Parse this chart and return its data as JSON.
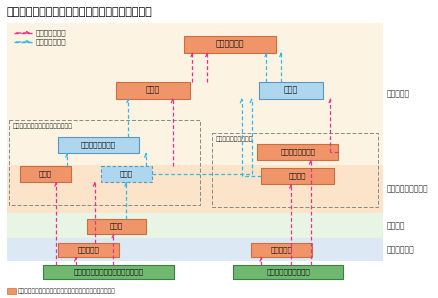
{
  "title": "ボスニア・ヘルツェゴビナの統治機構と選挙対象",
  "legend_election": "選挙により選出",
  "legend_appoint": "指名により選出",
  "note": "　部分は今次選挙の対象となった各議会であることを示す。",
  "bg": "#ffffff",
  "band_central": "#fdf3e3",
  "band_entity": "#fce4ca",
  "band_county": "#e8f4e4",
  "band_municipal": "#dce8f4",
  "orange_f": "#f0956a",
  "orange_e": "#c87040",
  "blue_f": "#aed6ee",
  "blue_e": "#5898c0",
  "green_f": "#70b870",
  "green_e": "#3a8040",
  "pink": "#e8308c",
  "cyan": "#30b8e8",
  "gray": "#888888",
  "lbl_central": "中央レベル",
  "lbl_entity": "エンティティレベル",
  "lbl_county": "県レベル",
  "lbl_municipal": "市町村レベル",
  "presidential_council": "大統領評議会",
  "house_reps_c": "代議院",
  "house_peoples_c": "民族院",
  "fed_label": "「ボスニア・ヘルツェゴビナ連邦」",
  "fed_label2": "[ボスニア・ヘルツェゴビナ連邦]",
  "fed_president": "大統領・副大統領",
  "fed_house_reps": "代議院",
  "fed_house_peoples": "民族院",
  "canton_assembly": "県議会",
  "fed_municipal": "市町村議会",
  "rs_label": "[スルプスカ共和国]",
  "rs_president": "大統領・副大統領",
  "rs_assembly": "国民議会",
  "rs_municipal": "市町村議会",
  "fed_citizens": "ボスニア・ヘルツェゴビナ連邦市民",
  "rs_citizens": "スルプスカ共和国市民"
}
